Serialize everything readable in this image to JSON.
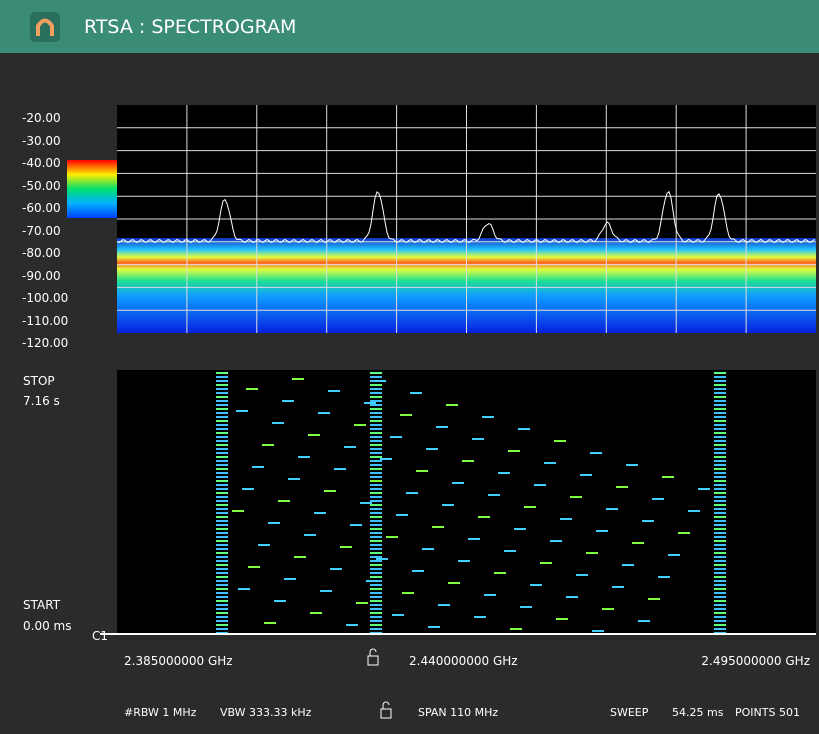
{
  "header": {
    "title": "RTSA : SPECTROGRAM"
  },
  "spectrum": {
    "y_labels": [
      "-20.00",
      "-30.00",
      "-40.00",
      "-50.00",
      "-60.00",
      "-70.00",
      "-80.00",
      "-90.00",
      "-100.00",
      "-110.00",
      "-120.00"
    ]
  },
  "spectrogram": {
    "stop_label": "STOP",
    "stop_time": "7.16 s",
    "start_label": "START",
    "start_time": "0.00 ms",
    "marker": "C1"
  },
  "frequency": {
    "start": "2.385000000 GHz",
    "center": "2.440000000 GHz",
    "stop": "2.495000000 GHz"
  },
  "status": {
    "rbw": "#RBW 1 MHz",
    "vbw": "VBW 333.33 kHz",
    "span": "SPAN 110 MHz",
    "sweep": "SWEEP",
    "sweep_time": "54.25 ms",
    "points": "POINTS 501"
  }
}
